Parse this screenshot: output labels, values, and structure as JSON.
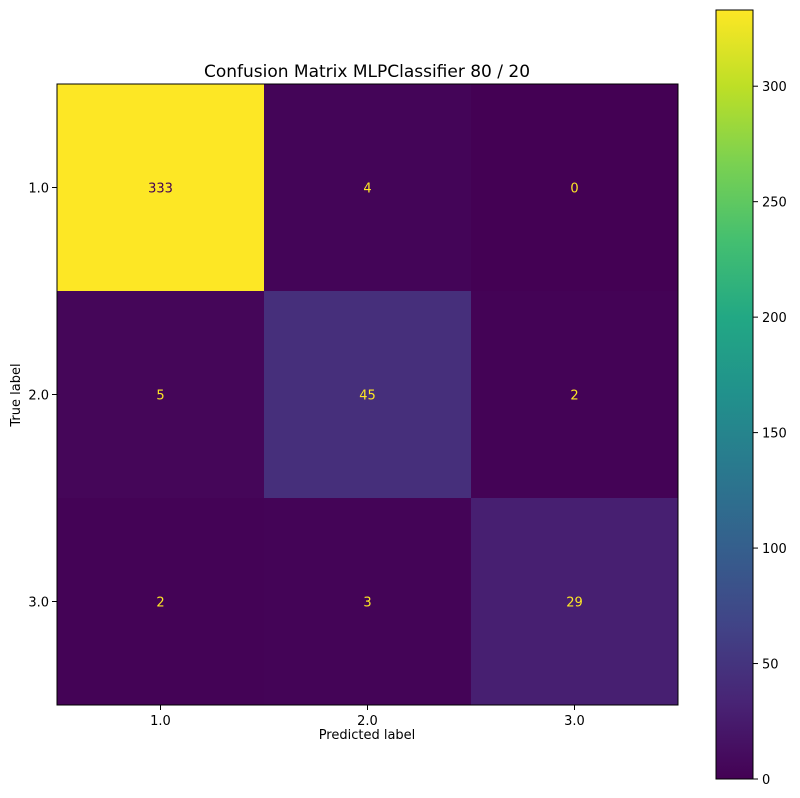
{
  "chart_data": {
    "type": "heatmap",
    "title": "Confusion Matrix MLPClassifier 80 / 20",
    "xlabel": "Predicted label",
    "ylabel": "True label",
    "x_categories": [
      "1.0",
      "2.0",
      "3.0"
    ],
    "y_categories": [
      "1.0",
      "2.0",
      "3.0"
    ],
    "values": [
      [
        333,
        4,
        0
      ],
      [
        5,
        45,
        2
      ],
      [
        2,
        3,
        29
      ]
    ],
    "colormap": "viridis",
    "text_color_dark_cells": "#fde725",
    "text_color_light_cells": "#440154",
    "colorbar": {
      "range": [
        0,
        333
      ],
      "ticks": [
        0,
        50,
        100,
        150,
        200,
        250,
        300
      ],
      "tick_labels": [
        "0",
        "50",
        "100",
        "150",
        "200",
        "250",
        "300"
      ]
    }
  }
}
